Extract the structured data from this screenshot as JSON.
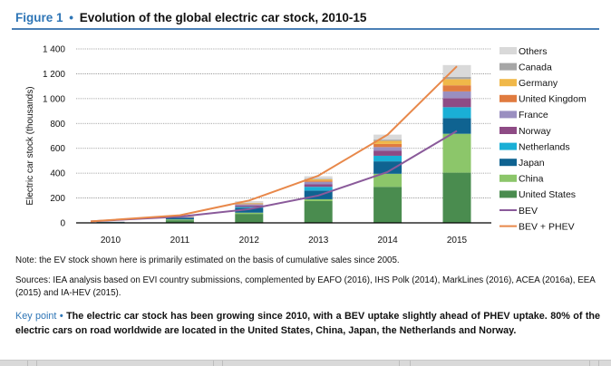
{
  "header": {
    "figure_label": "Figure 1",
    "separator": "•",
    "title": "Evolution of the global electric car stock, 2010-15"
  },
  "chart_data": {
    "type": "bar",
    "stacked": true,
    "title": "Evolution of the global electric car stock, 2010-15",
    "xlabel": "",
    "ylabel": "Electric car stock (thousands)",
    "ylim": [
      0,
      1400
    ],
    "yticks": [
      0,
      200,
      400,
      600,
      800,
      1000,
      1200,
      1400
    ],
    "ytick_labels": [
      "0",
      "200",
      "400",
      "600",
      "800",
      "1 000",
      "1 200",
      "1 400"
    ],
    "grid": true,
    "legend_position": "right",
    "categories": [
      "2010",
      "2011",
      "2012",
      "2013",
      "2014",
      "2015"
    ],
    "series": [
      {
        "name": "United States",
        "color": "#4a8c4f",
        "values": [
          4,
          21,
          72,
          175,
          290,
          404
        ]
      },
      {
        "name": "China",
        "color": "#8cc66a",
        "values": [
          1,
          7,
          10,
          15,
          105,
          313
        ]
      },
      {
        "name": "Japan",
        "color": "#0f6391",
        "values": [
          3,
          13,
          40,
          70,
          100,
          126
        ]
      },
      {
        "name": "Netherlands",
        "color": "#1aafd6",
        "values": [
          0,
          1,
          7,
          30,
          45,
          88
        ]
      },
      {
        "name": "Norway",
        "color": "#8e4b85",
        "values": [
          1,
          3,
          10,
          20,
          40,
          73
        ]
      },
      {
        "name": "France",
        "color": "#9a8fc0",
        "values": [
          0,
          3,
          10,
          20,
          30,
          54
        ]
      },
      {
        "name": "United Kingdom",
        "color": "#e07b3f",
        "values": [
          0,
          1,
          3,
          10,
          25,
          49
        ]
      },
      {
        "name": "Germany",
        "color": "#f0b849",
        "values": [
          0,
          2,
          5,
          10,
          25,
          50
        ]
      },
      {
        "name": "Canada",
        "color": "#a6a6a6",
        "values": [
          0,
          1,
          3,
          5,
          10,
          18
        ]
      },
      {
        "name": "Others",
        "color": "#d9d9d9",
        "values": [
          3,
          5,
          15,
          20,
          40,
          95
        ]
      }
    ],
    "lines": [
      {
        "name": "BEV",
        "color": "#8a5a9a",
        "values": [
          12,
          50,
          110,
          220,
          410,
          740
        ]
      },
      {
        "name": "BEV + PHEV",
        "color": "#e8884a",
        "values": [
          12,
          61,
          180,
          380,
          710,
          1260
        ]
      }
    ],
    "legend_order": [
      "Others",
      "Canada",
      "Germany",
      "United Kingdom",
      "France",
      "Norway",
      "Netherlands",
      "Japan",
      "China",
      "United States",
      "BEV",
      "BEV + PHEV"
    ]
  },
  "note": "Note: the EV stock shown here is primarily estimated on the basis of cumulative sales since 2005.",
  "sources": "Sources: IEA analysis based on EVI country submissions, complemented by EAFO (2016), IHS Polk (2014), MarkLines (2016), ACEA (2016a), EEA (2015) and IA-HEV (2015).",
  "key_point": {
    "label": "Key point",
    "separator": "•",
    "text": "The electric car stock has been growing since 2010, with a BEV uptake slightly ahead of PHEV uptake. 80% of the electric cars on road worldwide are located in the United States, China, Japan, the Netherlands and Norway."
  }
}
